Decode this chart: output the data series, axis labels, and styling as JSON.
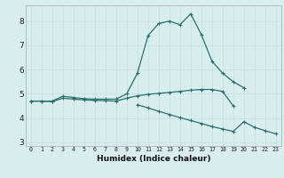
{
  "x": [
    0,
    1,
    2,
    3,
    4,
    5,
    6,
    7,
    8,
    9,
    10,
    11,
    12,
    13,
    14,
    15,
    16,
    17,
    18,
    19,
    20,
    21,
    22,
    23
  ],
  "line_top": [
    4.7,
    4.7,
    4.7,
    4.9,
    4.85,
    4.8,
    4.78,
    4.78,
    4.78,
    5.0,
    5.85,
    7.4,
    7.9,
    8.0,
    7.85,
    8.3,
    7.45,
    6.35,
    5.85,
    5.5,
    5.25,
    null,
    null,
    null
  ],
  "line_mid": [
    4.7,
    4.7,
    4.68,
    4.82,
    4.78,
    4.75,
    4.73,
    4.72,
    4.7,
    4.82,
    4.92,
    4.98,
    5.02,
    5.06,
    5.1,
    5.15,
    5.18,
    5.18,
    5.1,
    4.5,
    null,
    null,
    null,
    null
  ],
  "line_bot": [
    null,
    null,
    null,
    null,
    null,
    null,
    null,
    null,
    null,
    null,
    4.55,
    4.42,
    4.28,
    4.15,
    4.02,
    3.9,
    3.78,
    3.65,
    3.55,
    3.45,
    3.85,
    3.62,
    3.48,
    3.35
  ],
  "background_color": "#d8eeed",
  "grid_major_color": "#c8dedd",
  "grid_minor_color": "#ddeeed",
  "line_color": "#267070",
  "xlabel": "Humidex (Indice chaleur)",
  "ylim": [
    2.85,
    8.65
  ],
  "xlim": [
    -0.5,
    23.5
  ],
  "yticks": [
    3,
    4,
    5,
    6,
    7,
    8
  ],
  "xticks": [
    0,
    1,
    2,
    3,
    4,
    5,
    6,
    7,
    8,
    9,
    10,
    11,
    12,
    13,
    14,
    15,
    16,
    17,
    18,
    19,
    20,
    21,
    22,
    23
  ],
  "xlabel_fontsize": 6.5,
  "ytick_fontsize": 6.5,
  "xtick_fontsize": 4.8
}
